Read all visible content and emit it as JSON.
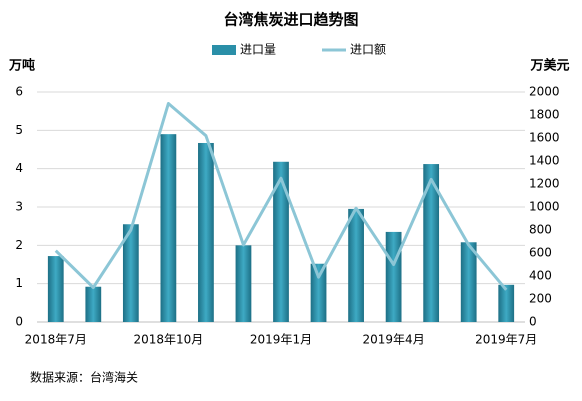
{
  "chart_data": {
    "type": "bar_line",
    "title": "台湾焦炭进口趋势图",
    "y_label": "万吨",
    "y2_label": "万美元",
    "source": "数据来源：台湾海关",
    "categories": [
      "2018年7月",
      null,
      null,
      "2018年10月",
      null,
      null,
      "2019年1月",
      null,
      null,
      "2019年4月",
      null,
      null,
      "2019年7月"
    ],
    "series": [
      {
        "name": "进口量",
        "type": "bar",
        "color": "#2a8fa8",
        "values": [
          1.72,
          0.92,
          2.55,
          4.9,
          4.67,
          2.0,
          4.18,
          1.52,
          2.95,
          2.35,
          4.12,
          2.08,
          0.97
        ]
      },
      {
        "name": "进口额",
        "type": "line",
        "axis": "y2",
        "color": "#8cc6d6",
        "values": [
          620,
          300,
          800,
          1900,
          1620,
          670,
          1250,
          390,
          990,
          500,
          1240,
          670,
          280
        ]
      }
    ],
    "ylim": [
      0,
      6
    ],
    "yticks": [
      0,
      1,
      2,
      3,
      4,
      5,
      6
    ],
    "y2lim": [
      0,
      2000
    ],
    "y2ticks": [
      0,
      200,
      400,
      600,
      800,
      1000,
      1200,
      1400,
      1600,
      1800,
      2000
    ],
    "grid": true
  }
}
